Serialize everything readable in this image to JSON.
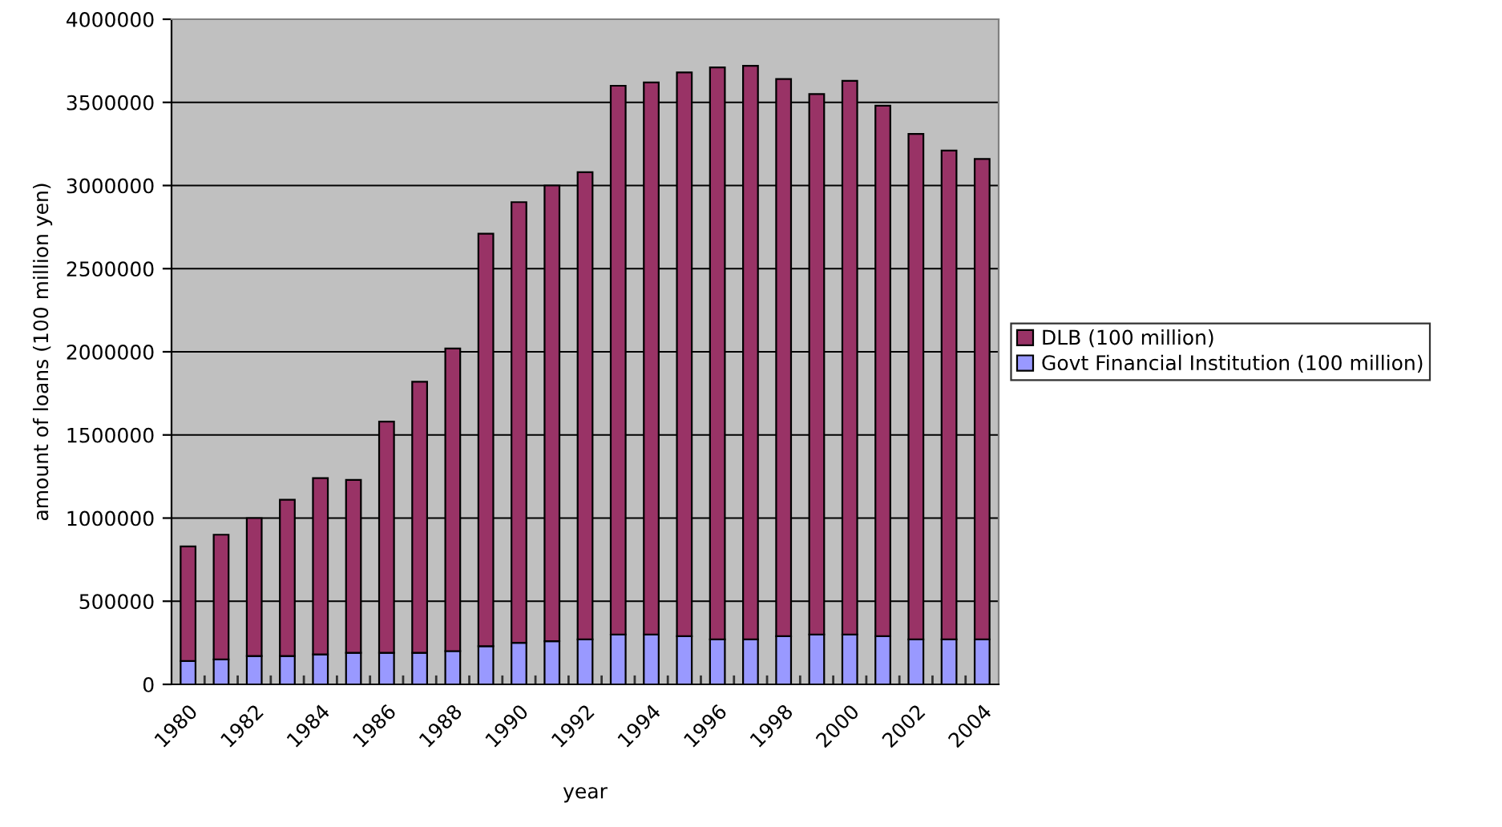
{
  "chart_data": {
    "type": "bar",
    "stacked": true,
    "xlabel": "year",
    "ylabel": "amount of loans (100 million yen)",
    "categories": [
      "1980",
      null,
      "1982",
      null,
      "1984",
      null,
      "1986",
      null,
      "1988",
      null,
      "1990",
      null,
      "1992",
      null,
      "1994",
      null,
      "1996",
      null,
      "1998",
      null,
      "2000",
      null,
      "2002",
      null,
      "2004"
    ],
    "series": [
      {
        "name": "Govt Financial Institution (100 million)",
        "color": "#9999ff",
        "values": [
          140000,
          150000,
          170000,
          170000,
          180000,
          190000,
          190000,
          190000,
          200000,
          230000,
          250000,
          260000,
          270000,
          300000,
          300000,
          290000,
          270000,
          270000,
          290000,
          300000,
          300000,
          290000,
          270000,
          270000,
          270000
        ]
      },
      {
        "name": "DLB (100 million)",
        "color": "#993366",
        "values": [
          690000,
          750000,
          830000,
          940000,
          1060000,
          1040000,
          1390000,
          1630000,
          1820000,
          2480000,
          2650000,
          2740000,
          2810000,
          3300000,
          3320000,
          3390000,
          3440000,
          3450000,
          3350000,
          3250000,
          3330000,
          3190000,
          3040000,
          2940000,
          2890000
        ]
      }
    ],
    "ylim": [
      0,
      4000000
    ],
    "yticks": [
      0,
      500000,
      1000000,
      1500000,
      2000000,
      2500000,
      3000000,
      3500000,
      4000000
    ],
    "grid": "y",
    "legend": "right"
  }
}
